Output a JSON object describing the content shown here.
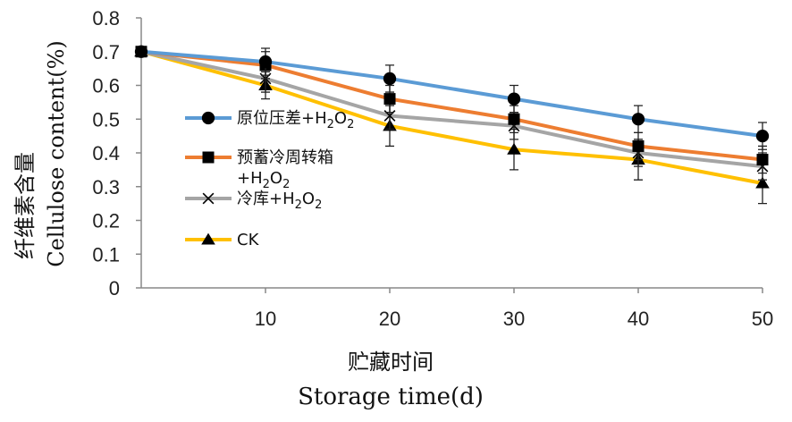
{
  "chart_data": {
    "type": "line",
    "x": [
      0,
      10,
      20,
      30,
      40,
      50
    ],
    "xticks": [
      "10",
      "20",
      "30",
      "40",
      "50"
    ],
    "ylim": [
      0,
      0.8
    ],
    "yticks": [
      "0",
      "0.1",
      "0.2",
      "0.3",
      "0.4",
      "0.5",
      "0.6",
      "0.7",
      "0.8"
    ],
    "xlabel_cn": "贮藏时间",
    "xlabel_en": "Storage time(d)",
    "ylabel_cn": "纤维素含量",
    "ylabel_en": "Cellulose content(%)",
    "grid": false,
    "legend_position": "left-inside",
    "series": [
      {
        "name": "原位压差+H2O2",
        "name_main": "原位压差+H",
        "name_suffix": "2O2",
        "color": "#5b9bd5",
        "marker": "circle",
        "values": [
          0.7,
          0.67,
          0.62,
          0.56,
          0.5,
          0.45
        ],
        "errors": [
          0.0,
          0.04,
          0.04,
          0.04,
          0.04,
          0.04
        ]
      },
      {
        "name": "预蓄冷周转箱+H2O2",
        "name_main": "预蓄冷周转箱",
        "name_suffix": "+H2O2",
        "color": "#ed7d31",
        "marker": "square",
        "values": [
          0.7,
          0.66,
          0.56,
          0.5,
          0.42,
          0.38
        ],
        "errors": [
          0.0,
          0.04,
          0.04,
          0.04,
          0.04,
          0.04
        ]
      },
      {
        "name": "冷库+H2O2",
        "name_main": "冷库+H",
        "name_suffix": "2O2",
        "color": "#a5a5a5",
        "marker": "x",
        "values": [
          0.7,
          0.62,
          0.51,
          0.48,
          0.4,
          0.36
        ],
        "errors": [
          0.0,
          0.04,
          0.04,
          0.04,
          0.04,
          0.04
        ]
      },
      {
        "name": "CK",
        "name_main": "CK",
        "name_suffix": "",
        "color": "#ffc000",
        "marker": "triangle",
        "values": [
          0.7,
          0.6,
          0.48,
          0.41,
          0.38,
          0.31
        ],
        "errors": [
          0.0,
          0.04,
          0.06,
          0.06,
          0.06,
          0.06
        ]
      }
    ]
  }
}
